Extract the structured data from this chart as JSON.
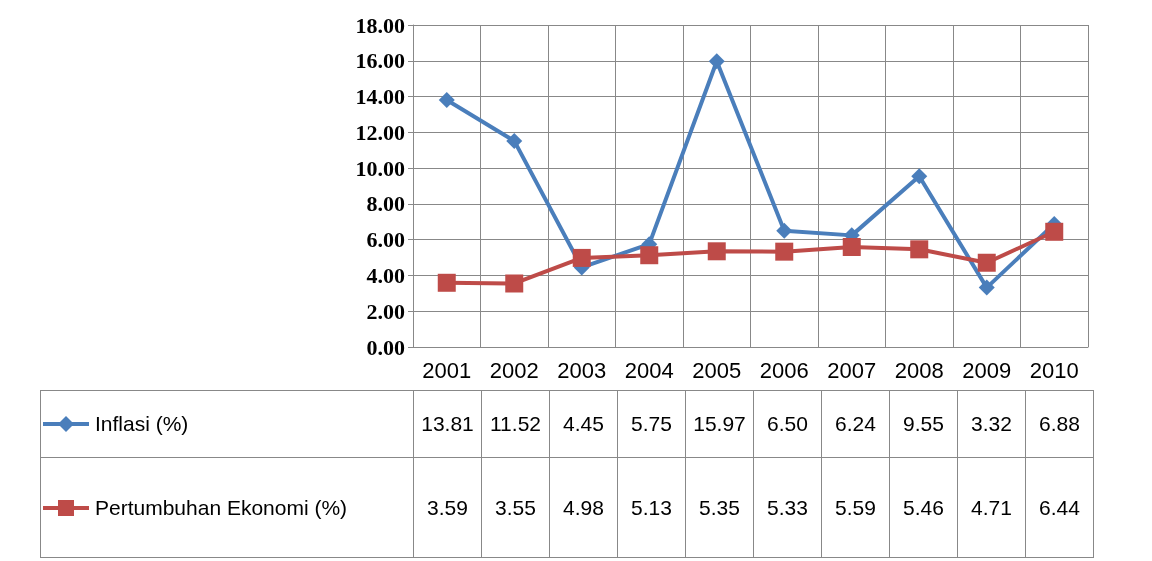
{
  "chart_data": {
    "type": "line",
    "categories": [
      "2001",
      "2002",
      "2003",
      "2004",
      "2005",
      "2006",
      "2007",
      "2008",
      "2009",
      "2010"
    ],
    "series": [
      {
        "name": "Inflasi (%)",
        "color": "#4a7ebb",
        "marker": "diamond",
        "values": [
          13.81,
          11.52,
          4.45,
          5.75,
          15.97,
          6.5,
          6.24,
          9.55,
          3.32,
          6.88
        ],
        "value_labels": [
          "13.81",
          "11.52",
          "4.45",
          "5.75",
          "15.97",
          "6.50",
          "6.24",
          "9.55",
          "3.32",
          "6.88"
        ]
      },
      {
        "name": "Pertumbuhan Ekonomi (%)",
        "color": "#be4b48",
        "marker": "square",
        "values": [
          3.59,
          3.55,
          4.98,
          5.13,
          5.35,
          5.33,
          5.59,
          5.46,
          4.71,
          6.44
        ],
        "value_labels": [
          "3.59",
          "3.55",
          "4.98",
          "5.13",
          "5.35",
          "5.33",
          "5.59",
          "5.46",
          "4.71",
          "6.44"
        ]
      }
    ],
    "ylim": [
      0,
      18
    ],
    "yticks": [
      {
        "value": 0,
        "label": "0.00"
      },
      {
        "value": 2,
        "label": "2.00"
      },
      {
        "value": 4,
        "label": "4.00"
      },
      {
        "value": 6,
        "label": "6.00"
      },
      {
        "value": 8,
        "label": "8.00"
      },
      {
        "value": 10,
        "label": "10.00"
      },
      {
        "value": 12,
        "label": "12.00"
      },
      {
        "value": 14,
        "label": "14.00"
      },
      {
        "value": 16,
        "label": "16.00"
      },
      {
        "value": 18,
        "label": "18.00"
      }
    ],
    "grid": true,
    "legend": "bottom",
    "line_style": "solid"
  }
}
